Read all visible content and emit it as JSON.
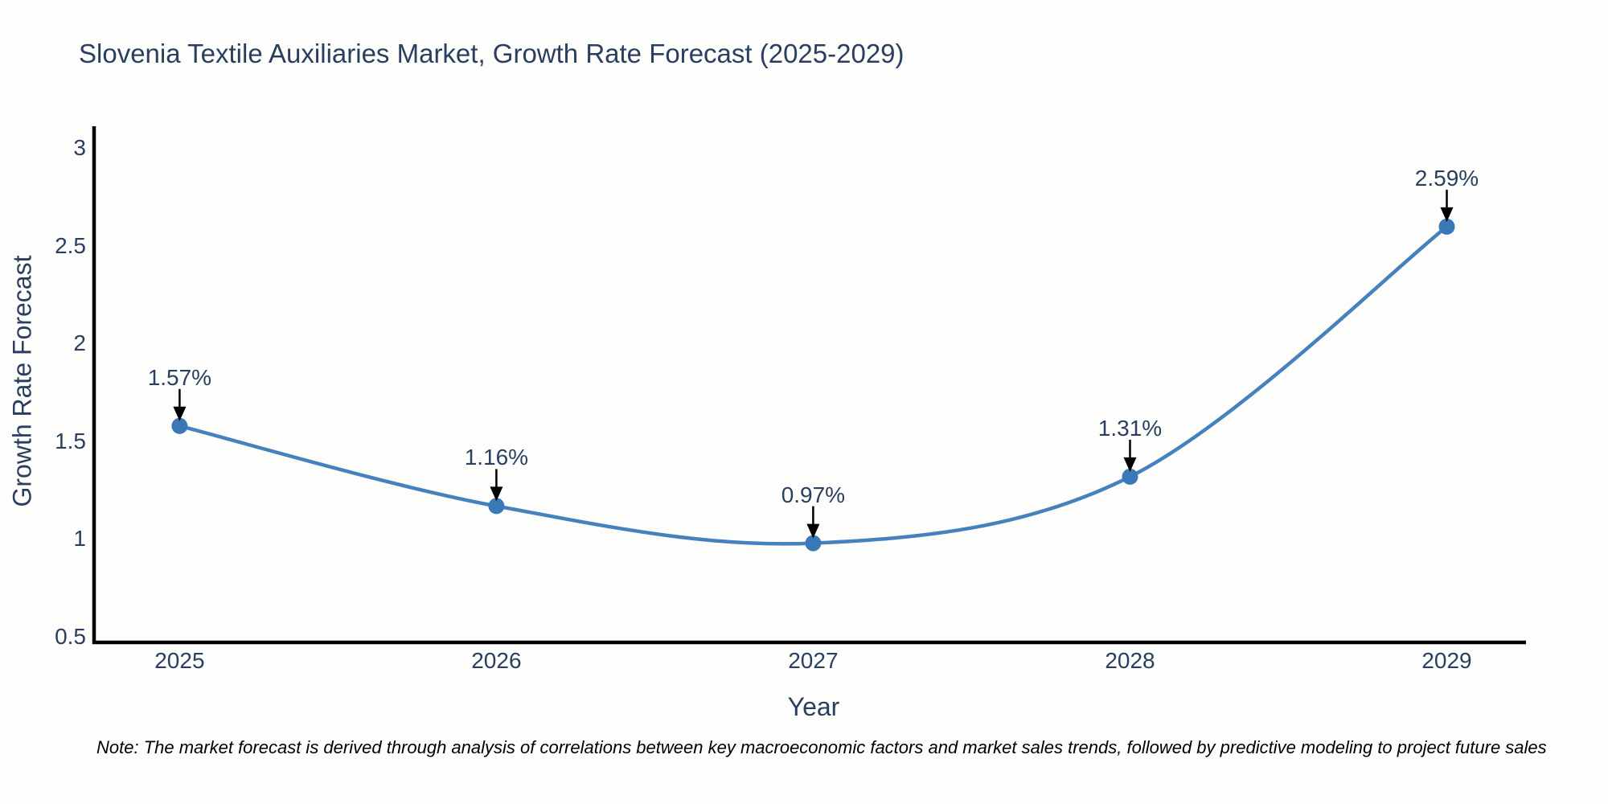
{
  "title": "Slovenia Textile Auxiliaries Market, Growth Rate Forecast (2025-2029)",
  "note": "Note: The market forecast is derived through analysis of correlations between key macroeconomic factors and market sales trends, followed by predictive modeling to project future sales",
  "chart_data": {
    "type": "line",
    "line_shape": "spline",
    "title": "Slovenia Textile Auxiliaries Market, Growth Rate Forecast (2025-2029)",
    "xlabel": "Year",
    "ylabel": "Growth Rate Forecast",
    "x": [
      2025,
      2026,
      2027,
      2028,
      2029
    ],
    "values": [
      1.57,
      1.16,
      0.97,
      1.31,
      2.59
    ],
    "point_labels": [
      "1.57%",
      "1.16%",
      "0.97%",
      "1.31%",
      "2.59%"
    ],
    "xtick_labels": [
      "2025",
      "2026",
      "2027",
      "2028",
      "2029"
    ],
    "ytick_values": [
      0.5,
      1,
      1.5,
      2,
      2.5,
      3
    ],
    "ytick_labels": [
      "0.5",
      "1",
      "1.5",
      "2",
      "2.5",
      "3"
    ],
    "xlim": [
      2024.73,
      2029.25
    ],
    "ylim": [
      0.462,
      3.104
    ],
    "grid": false,
    "legend_position": "none",
    "annotation_style": "value labels above points with downward black arrows",
    "colors": {
      "line": "#4581bd",
      "marker": "#3b78b6",
      "axis_line": "#000000",
      "chart_text": "#2a3f5f",
      "arrow": "#000000",
      "note_text": "#000000",
      "background": "#fdfdfc"
    }
  }
}
